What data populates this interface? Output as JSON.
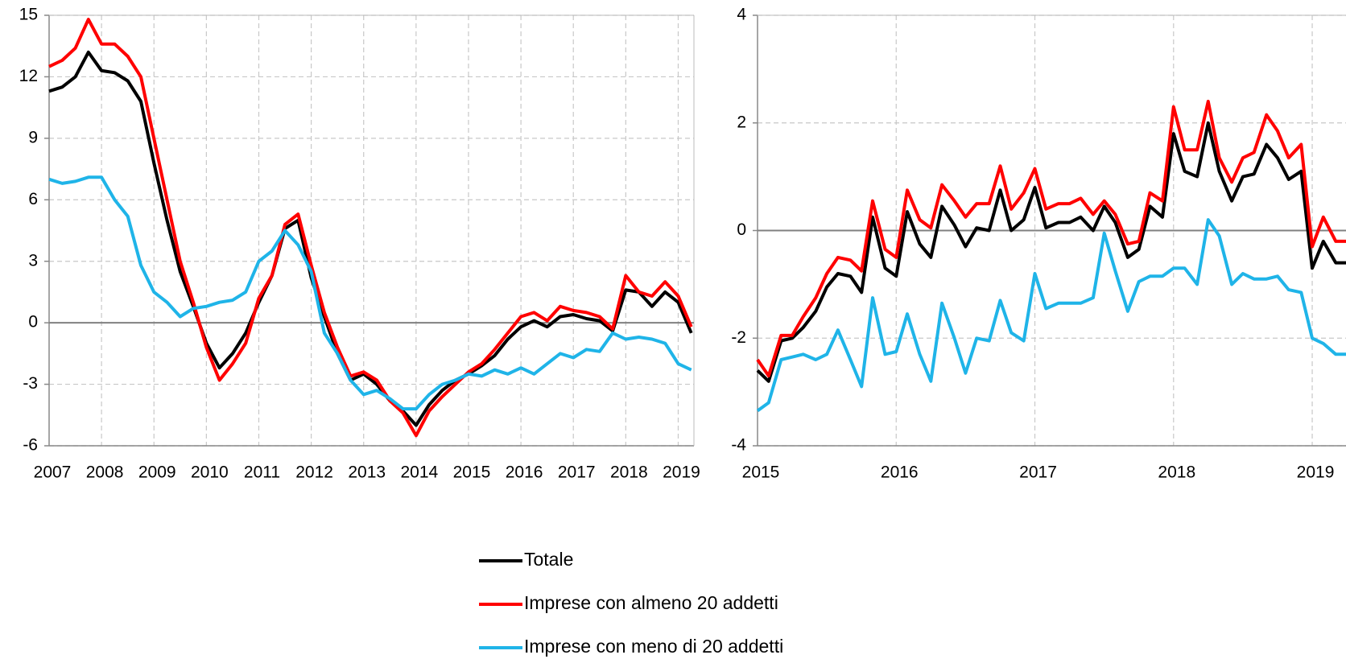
{
  "chart_data": [
    {
      "type": "line",
      "x": [
        2007,
        2007.25,
        2007.5,
        2007.75,
        2008,
        2008.25,
        2008.5,
        2008.75,
        2009,
        2009.25,
        2009.5,
        2009.75,
        2010,
        2010.25,
        2010.5,
        2010.75,
        2011,
        2011.25,
        2011.5,
        2011.75,
        2012,
        2012.25,
        2012.5,
        2012.75,
        2013,
        2013.25,
        2013.5,
        2013.75,
        2014,
        2014.25,
        2014.5,
        2014.75,
        2015,
        2015.25,
        2015.5,
        2015.75,
        2016,
        2016.25,
        2016.5,
        2016.75,
        2017,
        2017.25,
        2017.5,
        2017.75,
        2018,
        2018.25,
        2018.5,
        2018.75,
        2019,
        2019.25
      ],
      "series": [
        {
          "name": "Totale",
          "color": "#000000",
          "values": [
            11.3,
            11.5,
            12.0,
            13.2,
            12.3,
            12.2,
            11.8,
            10.8,
            7.8,
            5.0,
            2.5,
            0.8,
            -1.0,
            -2.2,
            -1.5,
            -0.5,
            1.0,
            2.3,
            4.6,
            5.0,
            2.2,
            0.3,
            -1.5,
            -2.8,
            -2.5,
            -3.0,
            -3.8,
            -4.3,
            -5.0,
            -4.0,
            -3.3,
            -2.8,
            -2.5,
            -2.1,
            -1.6,
            -0.8,
            -0.2,
            0.1,
            -0.2,
            0.3,
            0.4,
            0.2,
            0.1,
            -0.4,
            1.6,
            1.5,
            0.8,
            1.5,
            1.0,
            -0.5
          ]
        },
        {
          "name": "Imprese con almeno 20 addetti",
          "color": "#ff0000",
          "values": [
            12.5,
            12.8,
            13.4,
            14.8,
            13.6,
            13.6,
            13.0,
            12.0,
            9.0,
            6.0,
            3.0,
            1.0,
            -1.2,
            -2.8,
            -2.0,
            -1.0,
            1.2,
            2.3,
            4.8,
            5.3,
            2.8,
            0.5,
            -1.2,
            -2.6,
            -2.4,
            -2.8,
            -3.8,
            -4.4,
            -5.5,
            -4.3,
            -3.6,
            -3.0,
            -2.4,
            -2.0,
            -1.3,
            -0.5,
            0.3,
            0.5,
            0.1,
            0.8,
            0.6,
            0.5,
            0.3,
            -0.3,
            2.3,
            1.5,
            1.3,
            2.0,
            1.3,
            -0.2
          ]
        },
        {
          "name": "Imprese con meno di 20 addetti",
          "color": "#1fb4e8",
          "values": [
            7.0,
            6.8,
            6.9,
            7.1,
            7.1,
            6.0,
            5.2,
            2.8,
            1.5,
            1.0,
            0.3,
            0.7,
            0.8,
            1.0,
            1.1,
            1.5,
            3.0,
            3.5,
            4.5,
            3.8,
            2.5,
            -0.5,
            -1.5,
            -2.8,
            -3.5,
            -3.3,
            -3.7,
            -4.2,
            -4.2,
            -3.5,
            -3.0,
            -2.8,
            -2.5,
            -2.6,
            -2.3,
            -2.5,
            -2.2,
            -2.5,
            -2.0,
            -1.5,
            -1.7,
            -1.3,
            -1.4,
            -0.5,
            -0.8,
            -0.7,
            -0.8,
            -1.0,
            -2.0,
            -2.3
          ]
        }
      ],
      "xlim": [
        2007,
        2019.3
      ],
      "xticks": [
        2007,
        2008,
        2009,
        2010,
        2011,
        2012,
        2013,
        2014,
        2015,
        2016,
        2017,
        2018,
        2019
      ],
      "ylim": [
        -6,
        15
      ],
      "yticks": [
        -6,
        -3,
        0,
        3,
        6,
        9,
        12,
        15
      ],
      "grid": true
    },
    {
      "type": "line",
      "x": [
        2015,
        2015.08,
        2015.17,
        2015.25,
        2015.33,
        2015.42,
        2015.5,
        2015.58,
        2015.67,
        2015.75,
        2015.83,
        2015.92,
        2016,
        2016.08,
        2016.17,
        2016.25,
        2016.33,
        2016.42,
        2016.5,
        2016.58,
        2016.67,
        2016.75,
        2016.83,
        2016.92,
        2017,
        2017.08,
        2017.17,
        2017.25,
        2017.33,
        2017.42,
        2017.5,
        2017.58,
        2017.67,
        2017.75,
        2017.83,
        2017.92,
        2018,
        2018.08,
        2018.17,
        2018.25,
        2018.33,
        2018.42,
        2018.5,
        2018.58,
        2018.67,
        2018.75,
        2018.83,
        2018.92,
        2019,
        2019.08,
        2019.17,
        2019.25
      ],
      "series": [
        {
          "color": "#000000",
          "values": [
            -2.6,
            -2.8,
            -2.05,
            -2.0,
            -1.8,
            -1.5,
            -1.05,
            -0.8,
            -0.85,
            -1.15,
            0.25,
            -0.7,
            -0.85,
            0.35,
            -0.25,
            -0.5,
            0.45,
            0.1,
            -0.3,
            0.05,
            0.0,
            0.75,
            0.0,
            0.2,
            0.8,
            0.05,
            0.15,
            0.15,
            0.25,
            0.0,
            0.45,
            0.15,
            -0.5,
            -0.35,
            0.45,
            0.25,
            1.8,
            1.1,
            1.0,
            2.0,
            1.1,
            0.55,
            1.0,
            1.05,
            1.6,
            1.35,
            0.95,
            1.1,
            -0.7,
            -0.2,
            -0.6,
            -0.6
          ]
        },
        {
          "color": "#ff0000",
          "values": [
            -2.4,
            -2.7,
            -1.95,
            -1.95,
            -1.6,
            -1.25,
            -0.8,
            -0.5,
            -0.55,
            -0.75,
            0.55,
            -0.35,
            -0.5,
            0.75,
            0.2,
            0.05,
            0.85,
            0.55,
            0.25,
            0.5,
            0.5,
            1.2,
            0.4,
            0.7,
            1.15,
            0.4,
            0.5,
            0.5,
            0.6,
            0.3,
            0.55,
            0.3,
            -0.25,
            -0.2,
            0.7,
            0.55,
            2.3,
            1.5,
            1.5,
            2.4,
            1.35,
            0.9,
            1.35,
            1.45,
            2.15,
            1.85,
            1.35,
            1.6,
            -0.3,
            0.25,
            -0.2,
            -0.2
          ]
        },
        {
          "color": "#1fb4e8",
          "values": [
            -3.35,
            -3.2,
            -2.4,
            -2.35,
            -2.3,
            -2.4,
            -2.3,
            -1.85,
            -2.4,
            -2.9,
            -1.25,
            -2.3,
            -2.25,
            -1.55,
            -2.3,
            -2.8,
            -1.35,
            -2.0,
            -2.65,
            -2.0,
            -2.05,
            -1.3,
            -1.9,
            -2.05,
            -0.8,
            -1.45,
            -1.35,
            -1.35,
            -1.35,
            -1.25,
            -0.05,
            -0.75,
            -1.5,
            -0.95,
            -0.85,
            -0.85,
            -0.7,
            -0.7,
            -1.0,
            0.2,
            -0.1,
            -1.0,
            -0.8,
            -0.9,
            -0.9,
            -0.85,
            -1.1,
            -1.15,
            -2.0,
            -2.1,
            -2.3,
            -2.3
          ]
        }
      ],
      "xlim": [
        2015,
        2019.29
      ],
      "xticks": [
        2015,
        2016,
        2017,
        2018,
        2019
      ],
      "ylim": [
        -4,
        4
      ],
      "yticks": [
        -4,
        -2,
        0,
        2,
        4
      ],
      "grid": true
    }
  ]
}
